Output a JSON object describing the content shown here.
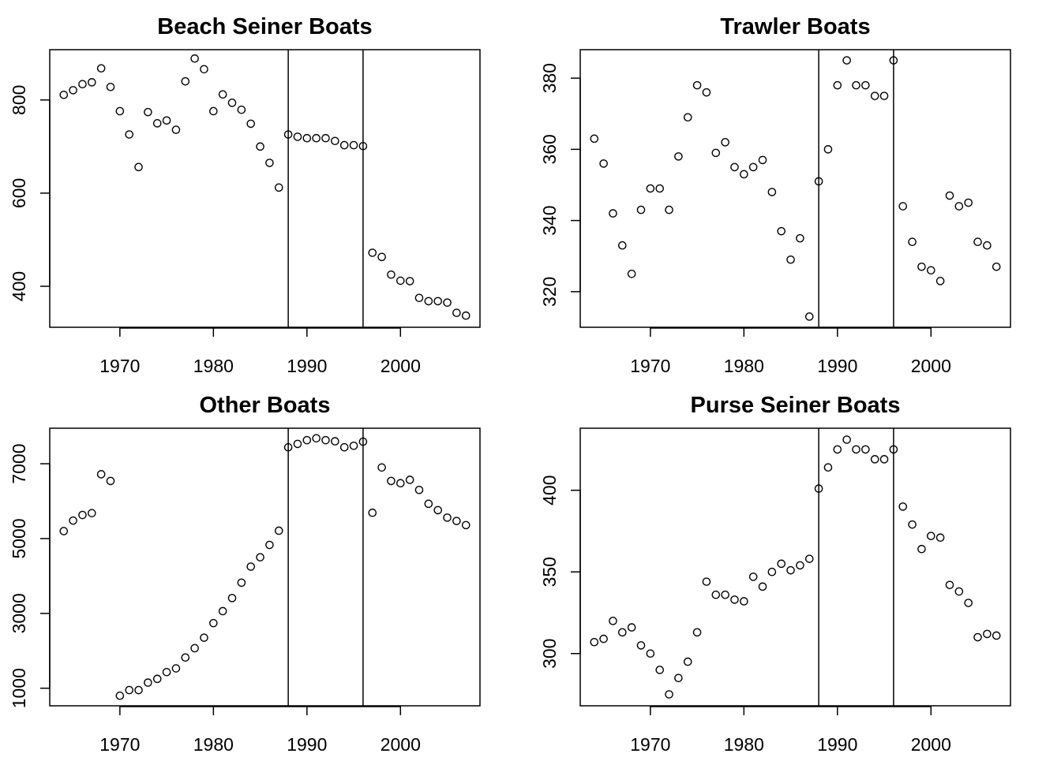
{
  "chart_data": [
    {
      "type": "scatter",
      "title": "Beach Seiner Boats",
      "xlabel": "",
      "ylabel": "",
      "xlim": [
        1962.5,
        2008.5
      ],
      "ylim": [
        312,
        908
      ],
      "xticks": [
        1970,
        1980,
        1990,
        2000
      ],
      "yticks": [
        400,
        600,
        800
      ],
      "vlines": [
        1988,
        1996
      ],
      "x": [
        1964,
        1965,
        1966,
        1967,
        1968,
        1969,
        1970,
        1971,
        1972,
        1973,
        1974,
        1975,
        1976,
        1977,
        1978,
        1979,
        1980,
        1981,
        1982,
        1983,
        1984,
        1985,
        1986,
        1987,
        1988,
        1989,
        1990,
        1991,
        1992,
        1993,
        1994,
        1995,
        1996,
        1997,
        1998,
        1999,
        2000,
        2001,
        2002,
        2003,
        2004,
        2005,
        2006,
        2007
      ],
      "y": [
        811,
        821,
        834,
        838,
        868,
        828,
        776,
        726,
        656,
        774,
        750,
        756,
        736,
        840,
        889,
        866,
        776,
        812,
        794,
        779,
        749,
        700,
        665,
        612,
        726,
        721,
        718,
        718,
        718,
        712,
        703,
        703,
        701,
        472,
        463,
        425,
        412,
        411,
        375,
        368,
        368,
        365,
        343,
        337
      ]
    },
    {
      "type": "scatter",
      "title": "Trawler Boats",
      "xlabel": "",
      "ylabel": "",
      "xlim": [
        1962.5,
        2008.5
      ],
      "ylim": [
        310,
        388
      ],
      "xticks": [
        1970,
        1980,
        1990,
        2000
      ],
      "yticks": [
        320,
        340,
        360,
        380
      ],
      "vlines": [
        1988,
        1996
      ],
      "x": [
        1964,
        1965,
        1966,
        1967,
        1968,
        1969,
        1970,
        1971,
        1972,
        1973,
        1974,
        1975,
        1976,
        1977,
        1978,
        1979,
        1980,
        1981,
        1982,
        1983,
        1984,
        1985,
        1986,
        1987,
        1988,
        1989,
        1990,
        1991,
        1992,
        1993,
        1994,
        1995,
        1996,
        1997,
        1998,
        1999,
        2000,
        2001,
        2002,
        2003,
        2004,
        2005,
        2006,
        2007
      ],
      "y": [
        363,
        356,
        342,
        333,
        325,
        343,
        349,
        349,
        343,
        358,
        369,
        378,
        376,
        359,
        362,
        355,
        353,
        355,
        357,
        348,
        337,
        329,
        335,
        313,
        351,
        360,
        378,
        385,
        378,
        378,
        375,
        375,
        385,
        344,
        334,
        327,
        326,
        323,
        347,
        344,
        345,
        334,
        333,
        327
      ]
    },
    {
      "type": "scatter",
      "title": "Other Boats",
      "xlabel": "",
      "ylabel": "",
      "xlim": [
        1962.5,
        2008.5
      ],
      "ylim": [
        530,
        7950
      ],
      "xticks": [
        1970,
        1980,
        1990,
        2000
      ],
      "yticks": [
        1000,
        3000,
        5000,
        7000
      ],
      "vlines": [
        1988,
        1996
      ],
      "x": [
        1964,
        1965,
        1966,
        1967,
        1968,
        1969,
        1970,
        1971,
        1972,
        1973,
        1974,
        1975,
        1976,
        1977,
        1978,
        1979,
        1980,
        1981,
        1982,
        1983,
        1984,
        1985,
        1986,
        1987,
        1988,
        1989,
        1990,
        1991,
        1992,
        1993,
        1994,
        1995,
        1996,
        1997,
        1998,
        1999,
        2000,
        2001,
        2002,
        2003,
        2004,
        2005,
        2006,
        2007
      ],
      "y": [
        5200,
        5480,
        5630,
        5680,
        6720,
        6540,
        800,
        950,
        950,
        1150,
        1250,
        1430,
        1530,
        1820,
        2070,
        2350,
        2740,
        3060,
        3410,
        3820,
        4250,
        4500,
        4830,
        5210,
        7440,
        7530,
        7630,
        7680,
        7630,
        7600,
        7440,
        7480,
        7590,
        5690,
        6900,
        6540,
        6480,
        6570,
        6300,
        5930,
        5760,
        5560,
        5470,
        5360
      ]
    },
    {
      "type": "scatter",
      "title": "Purse Seiner Boats",
      "xlabel": "",
      "ylabel": "",
      "xlim": [
        1962.5,
        2008.5
      ],
      "ylim": [
        268,
        438
      ],
      "xticks": [
        1970,
        1980,
        1990,
        2000
      ],
      "yticks": [
        300,
        350,
        400
      ],
      "vlines": [
        1988,
        1996
      ],
      "x": [
        1964,
        1965,
        1966,
        1967,
        1968,
        1969,
        1970,
        1971,
        1972,
        1973,
        1974,
        1975,
        1976,
        1977,
        1978,
        1979,
        1980,
        1981,
        1982,
        1983,
        1984,
        1985,
        1986,
        1987,
        1988,
        1989,
        1990,
        1991,
        1992,
        1993,
        1994,
        1995,
        1996,
        1997,
        1998,
        1999,
        2000,
        2001,
        2002,
        2003,
        2004,
        2005,
        2006,
        2007
      ],
      "y": [
        307,
        309,
        320,
        313,
        316,
        305,
        300,
        290,
        275,
        285,
        295,
        313,
        344,
        336,
        336,
        333,
        332,
        347,
        341,
        350,
        355,
        351,
        354,
        358,
        401,
        414,
        425,
        431,
        425,
        425,
        419,
        419,
        425,
        390,
        379,
        364,
        372,
        371,
        342,
        338,
        331,
        310,
        312,
        311
      ]
    }
  ]
}
